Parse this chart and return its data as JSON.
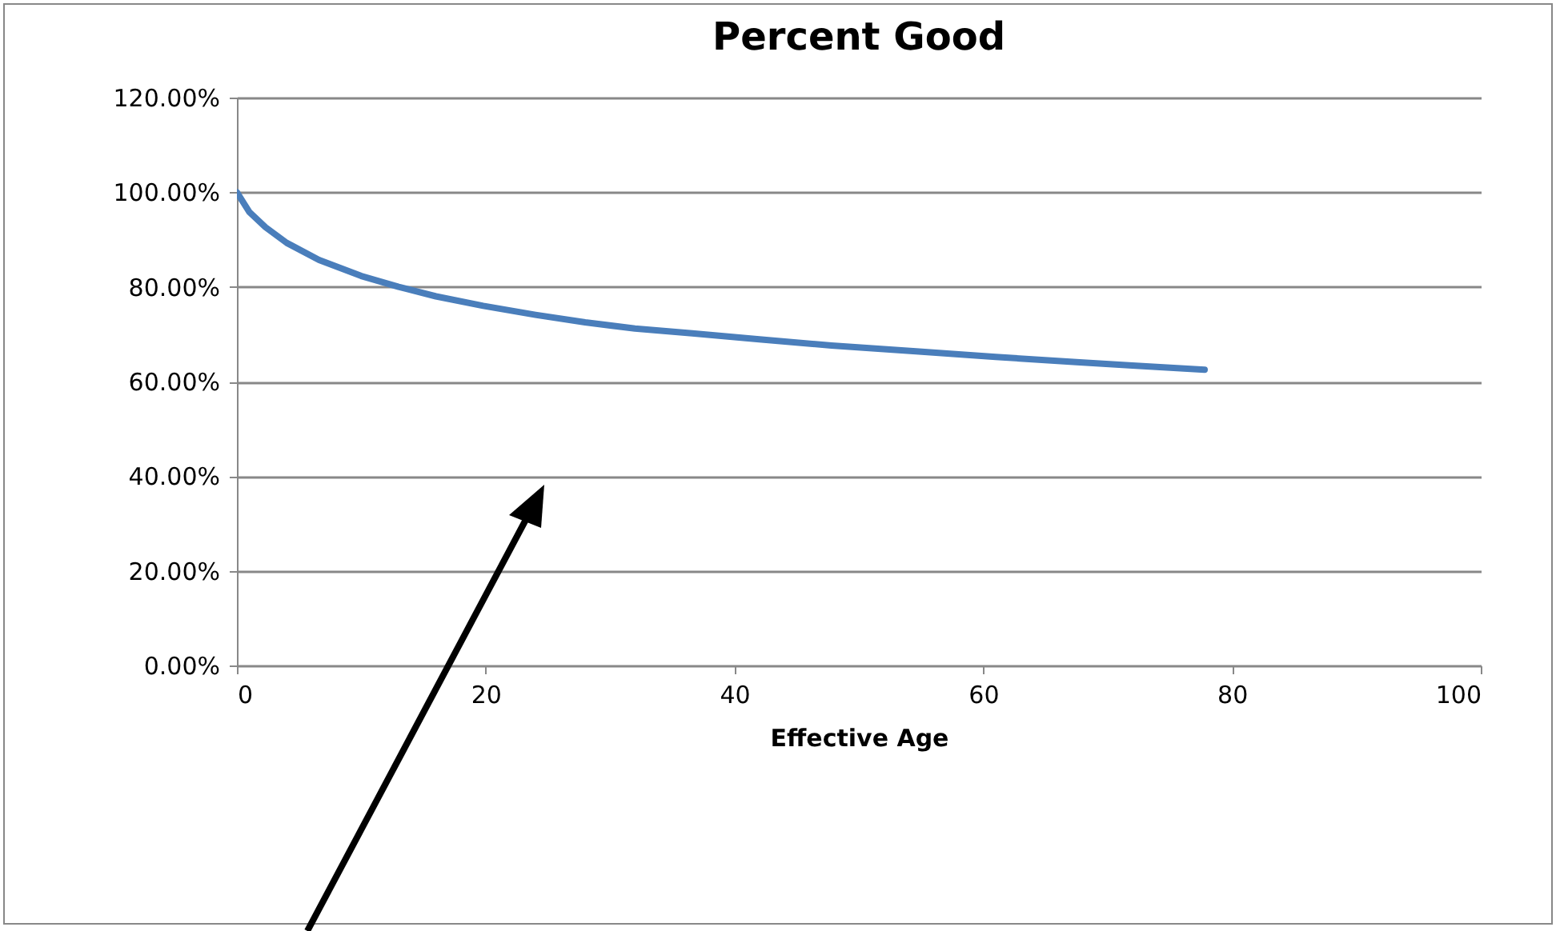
{
  "chart_data": {
    "type": "line",
    "title": "Percent Good",
    "xlabel": "Effective Age",
    "x": [
      0,
      1,
      2.3,
      4,
      6.6,
      10,
      13,
      16,
      19.8,
      24,
      28,
      32,
      36.6,
      42,
      47.8,
      54.6,
      61,
      67.5,
      72,
      77.8
    ],
    "series": [
      {
        "color": "#4a7ebb",
        "values": [
          100,
          95.8,
          92.6,
          89.3,
          85.7,
          82.3,
          80,
          78,
          76,
          74.1,
          72.5,
          71.2,
          70.2,
          68.9,
          67.6,
          66.4,
          65.2,
          64.1,
          63.4,
          62.5
        ]
      }
    ],
    "xlim": [
      0,
      100
    ],
    "xticks": [
      0,
      20,
      40,
      60,
      80,
      100
    ],
    "ylim": [
      0,
      120
    ],
    "yticks": [
      {
        "value": 0,
        "label": "0.00%"
      },
      {
        "value": 20,
        "label": "20.00%"
      },
      {
        "value": 40,
        "label": "40.00%"
      },
      {
        "value": 60,
        "label": "60.00%"
      },
      {
        "value": 80,
        "label": "80.00%"
      },
      {
        "value": 100,
        "label": "100.00%"
      },
      {
        "value": 120,
        "label": "120.00%"
      }
    ],
    "grid": "y",
    "marker": "none",
    "line_style": "solid"
  }
}
